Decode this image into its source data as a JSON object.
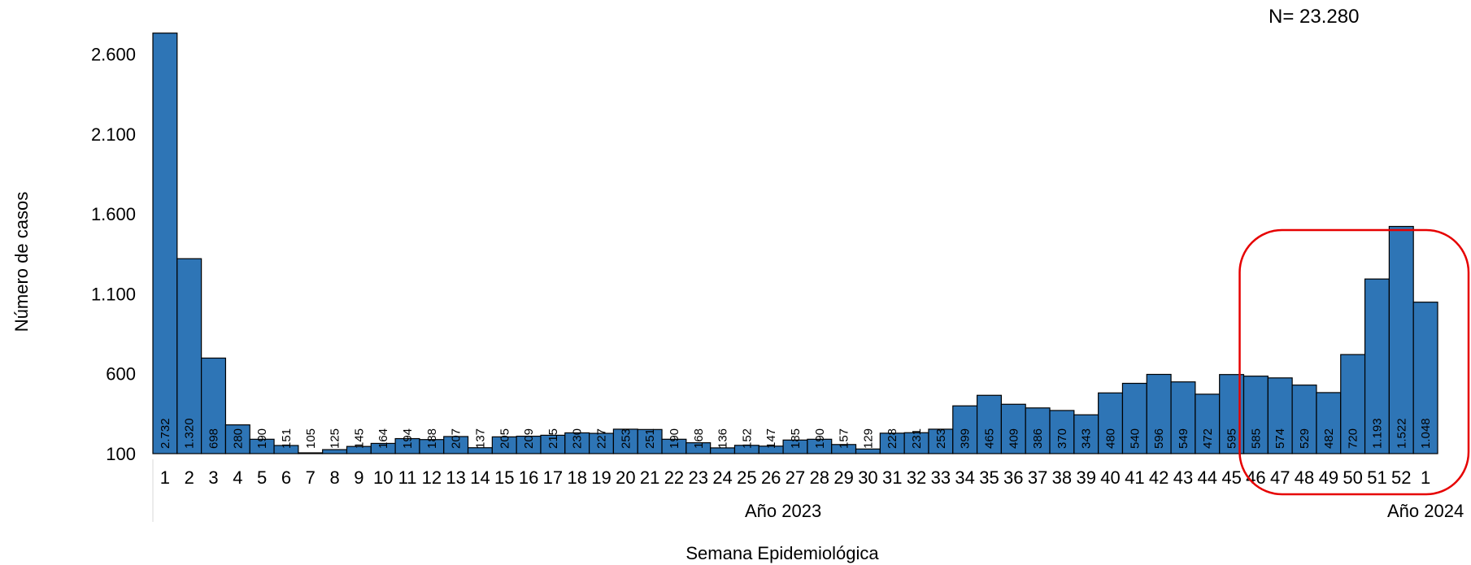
{
  "n_label": "N= 23.280",
  "colors": {
    "bar_fill": "#2E75B6",
    "bar_stroke": "#000000",
    "highlight_stroke": "#E60000",
    "axis_line": "#D9D9D9"
  },
  "chart_data": {
    "type": "bar",
    "title": "",
    "xlabel": "Semana Epidemiológica",
    "ylabel": "Número de casos",
    "ylim": [
      100,
      2700
    ],
    "y_ticks": [
      "100",
      "600",
      "1.100",
      "1.600",
      "2.100",
      "2.600"
    ],
    "y_tick_values": [
      100,
      600,
      1100,
      1600,
      2100,
      2600
    ],
    "grid": false,
    "groups": [
      {
        "label": "Año 2023",
        "start_index": 0,
        "end_index": 51
      },
      {
        "label": "Año 2024",
        "start_index": 52,
        "end_index": 52
      }
    ],
    "highlight": {
      "start_index": 45,
      "end_index": 52,
      "shape": "rounded-rectangle",
      "color": "red"
    },
    "categories": [
      "1",
      "2",
      "3",
      "4",
      "5",
      "6",
      "7",
      "8",
      "9",
      "10",
      "11",
      "12",
      "13",
      "14",
      "15",
      "16",
      "17",
      "18",
      "19",
      "20",
      "21",
      "22",
      "23",
      "24",
      "25",
      "26",
      "27",
      "28",
      "29",
      "30",
      "31",
      "32",
      "33",
      "34",
      "35",
      "36",
      "37",
      "38",
      "39",
      "40",
      "41",
      "42",
      "43",
      "44",
      "45",
      "46",
      "47",
      "48",
      "49",
      "50",
      "51",
      "52",
      "1"
    ],
    "values": [
      2732,
      1320,
      698,
      280,
      190,
      151,
      105,
      125,
      145,
      164,
      194,
      188,
      207,
      137,
      205,
      209,
      215,
      230,
      227,
      253,
      251,
      190,
      168,
      136,
      152,
      147,
      185,
      190,
      157,
      129,
      228,
      231,
      253,
      399,
      465,
      409,
      386,
      370,
      343,
      480,
      540,
      596,
      549,
      472,
      595,
      585,
      574,
      529,
      482,
      720,
      1193,
      1522,
      1048
    ],
    "value_labels": [
      "2.732",
      "1.320",
      "698",
      "280",
      "190",
      "151",
      "105",
      "125",
      "145",
      "164",
      "194",
      "188",
      "207",
      "137",
      "205",
      "209",
      "215",
      "230",
      "227",
      "253",
      "251",
      "190",
      "168",
      "136",
      "152",
      "147",
      "185",
      "190",
      "157",
      "129",
      "228",
      "231",
      "253",
      "399",
      "465",
      "409",
      "386",
      "370",
      "343",
      "480",
      "540",
      "596",
      "549",
      "472",
      "595",
      "585",
      "574",
      "529",
      "482",
      "720",
      "1.193",
      "1.522",
      "1.048"
    ]
  }
}
